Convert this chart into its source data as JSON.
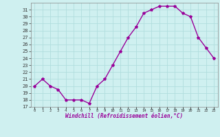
{
  "x": [
    0,
    1,
    2,
    3,
    4,
    5,
    6,
    7,
    8,
    9,
    10,
    11,
    12,
    13,
    14,
    15,
    16,
    17,
    18,
    19,
    20,
    21,
    22,
    23
  ],
  "y": [
    20,
    21,
    20,
    19.5,
    18,
    18,
    18,
    17.5,
    20,
    21,
    23,
    25,
    27,
    28.5,
    30.5,
    31,
    31.5,
    31.5,
    31.5,
    30.5,
    30,
    27,
    25.5,
    24
  ],
  "line_color": "#990099",
  "marker": "*",
  "marker_size": 3,
  "bg_color": "#cff0f0",
  "grid_color": "#b0dede",
  "xlabel": "Windchill (Refroidissement éolien,°C)",
  "xlabel_color": "#990099",
  "ylabel_ticks": [
    17,
    18,
    19,
    20,
    21,
    22,
    23,
    24,
    25,
    26,
    27,
    28,
    29,
    30,
    31
  ],
  "xtick_labels": [
    "0",
    "1",
    "2",
    "3",
    "4",
    "5",
    "6",
    "7",
    "8",
    "9",
    "10",
    "11",
    "12",
    "13",
    "14",
    "15",
    "16",
    "17",
    "18",
    "19",
    "20",
    "21",
    "22",
    "23"
  ],
  "ylim": [
    17,
    32
  ],
  "xlim": [
    -0.5,
    23.5
  ]
}
